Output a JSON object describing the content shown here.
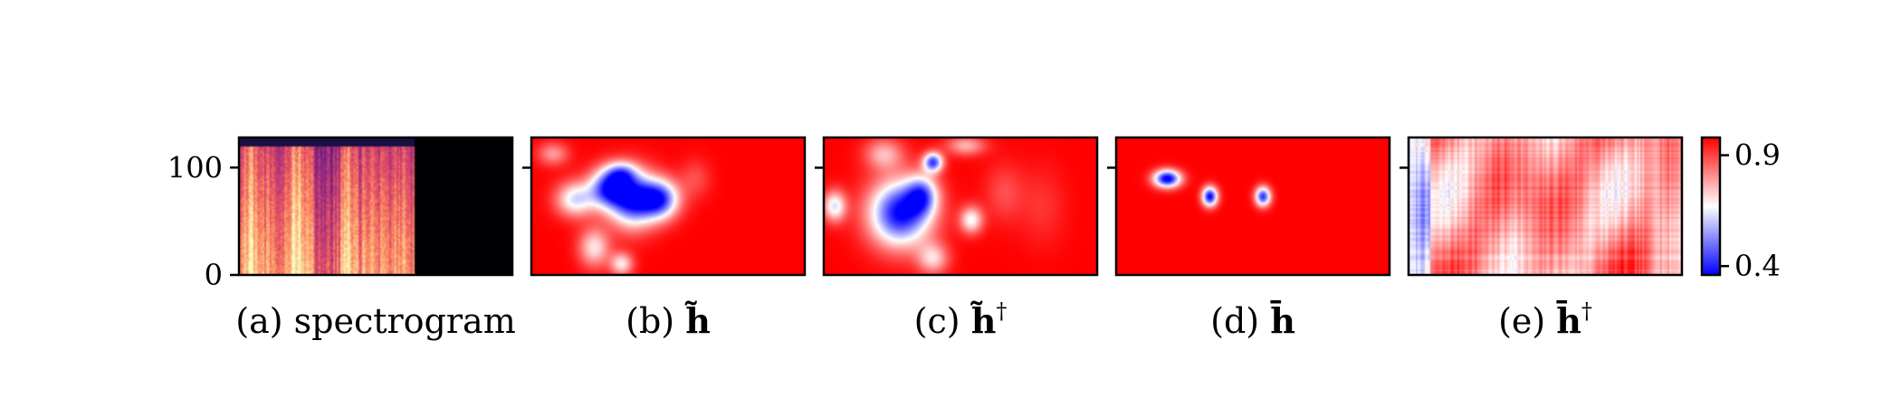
{
  "chart_data": {
    "type": "heatmap",
    "panels": [
      {
        "id": "a",
        "type": "spectrogram",
        "caption_prefix": "(a)",
        "caption_text": "spectrogram",
        "y_ticks": [
          0,
          100
        ],
        "ylim": [
          0,
          128
        ],
        "content_fraction": 0.64,
        "bright_bands": [
          0.07,
          0.33,
          0.61
        ],
        "colormap": "magma"
      },
      {
        "id": "b",
        "type": "heatmap",
        "caption_prefix": "(b)",
        "symbol": "h",
        "accent": "tilde",
        "dagger": false,
        "blobs": [
          {
            "x": 0.28,
            "y": 0.37,
            "sx": 0.05,
            "sy": 0.1,
            "a": 0.8
          },
          {
            "x": 0.37,
            "y": 0.45,
            "sx": 0.06,
            "sy": 0.14,
            "a": 0.95
          },
          {
            "x": 0.47,
            "y": 0.45,
            "sx": 0.05,
            "sy": 0.1,
            "a": 0.85
          },
          {
            "x": 0.16,
            "y": 0.45,
            "sx": 0.05,
            "sy": 0.09,
            "a": 0.55
          },
          {
            "x": 0.33,
            "y": 0.26,
            "sx": 0.04,
            "sy": 0.06,
            "a": 0.45
          },
          {
            "x": 0.23,
            "y": 0.8,
            "sx": 0.04,
            "sy": 0.1,
            "a": 0.45
          },
          {
            "x": 0.33,
            "y": 0.92,
            "sx": 0.03,
            "sy": 0.06,
            "a": 0.45
          },
          {
            "x": 0.08,
            "y": 0.12,
            "sx": 0.04,
            "sy": 0.06,
            "a": 0.3
          },
          {
            "x": 0.6,
            "y": 0.3,
            "sx": 0.04,
            "sy": 0.1,
            "a": 0.15
          }
        ]
      },
      {
        "id": "c",
        "type": "heatmap",
        "caption_prefix": "(c)",
        "symbol": "h",
        "accent": "tilde",
        "dagger": true,
        "blobs": [
          {
            "x": 0.28,
            "y": 0.55,
            "sx": 0.08,
            "sy": 0.17,
            "a": 1.0
          },
          {
            "x": 0.36,
            "y": 0.42,
            "sx": 0.04,
            "sy": 0.1,
            "a": 0.6
          },
          {
            "x": 0.4,
            "y": 0.18,
            "sx": 0.025,
            "sy": 0.05,
            "a": 0.85
          },
          {
            "x": 0.04,
            "y": 0.5,
            "sx": 0.03,
            "sy": 0.08,
            "a": 0.55
          },
          {
            "x": 0.54,
            "y": 0.6,
            "sx": 0.03,
            "sy": 0.07,
            "a": 0.5
          },
          {
            "x": 0.22,
            "y": 0.12,
            "sx": 0.05,
            "sy": 0.08,
            "a": 0.35
          },
          {
            "x": 0.52,
            "y": 0.06,
            "sx": 0.05,
            "sy": 0.05,
            "a": 0.35
          },
          {
            "x": 0.4,
            "y": 0.88,
            "sx": 0.04,
            "sy": 0.08,
            "a": 0.4
          },
          {
            "x": 0.66,
            "y": 0.4,
            "sx": 0.05,
            "sy": 0.15,
            "a": 0.15
          },
          {
            "x": 0.8,
            "y": 0.5,
            "sx": 0.06,
            "sy": 0.2,
            "a": 0.1
          }
        ]
      },
      {
        "id": "d",
        "type": "heatmap",
        "caption_prefix": "(d)",
        "symbol": "h",
        "accent": "bar",
        "dagger": false,
        "blobs": [
          {
            "x": 0.187,
            "y": 0.3,
            "sx": 0.035,
            "sy": 0.045,
            "a": 1.05
          },
          {
            "x": 0.343,
            "y": 0.43,
            "sx": 0.02,
            "sy": 0.05,
            "a": 1.0
          },
          {
            "x": 0.537,
            "y": 0.43,
            "sx": 0.02,
            "sy": 0.05,
            "a": 0.9
          }
        ]
      },
      {
        "id": "e",
        "type": "heatmap",
        "caption_prefix": "(e)",
        "symbol": "h",
        "accent": "bar",
        "dagger": true,
        "noise_seed": 7
      }
    ],
    "colorbar": {
      "ticks": [
        "0.9",
        "0.4"
      ],
      "range": [
        0.36,
        0.98
      ],
      "colors": [
        "#0000ff",
        "#ffffff",
        "#ff0000"
      ]
    }
  }
}
